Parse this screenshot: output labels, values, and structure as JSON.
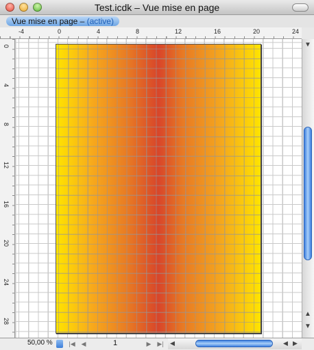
{
  "window": {
    "title": "Test.icdk – Vue mise en page"
  },
  "view_label": {
    "name": "Vue mise en page –",
    "state": "(active)"
  },
  "rulers": {
    "top": [
      -4,
      0,
      4,
      8,
      12,
      16,
      20,
      24
    ],
    "left": [
      0,
      4,
      8,
      12,
      16,
      20,
      24,
      28
    ]
  },
  "status_bar": {
    "zoom": "50,00 %",
    "page": "1"
  }
}
